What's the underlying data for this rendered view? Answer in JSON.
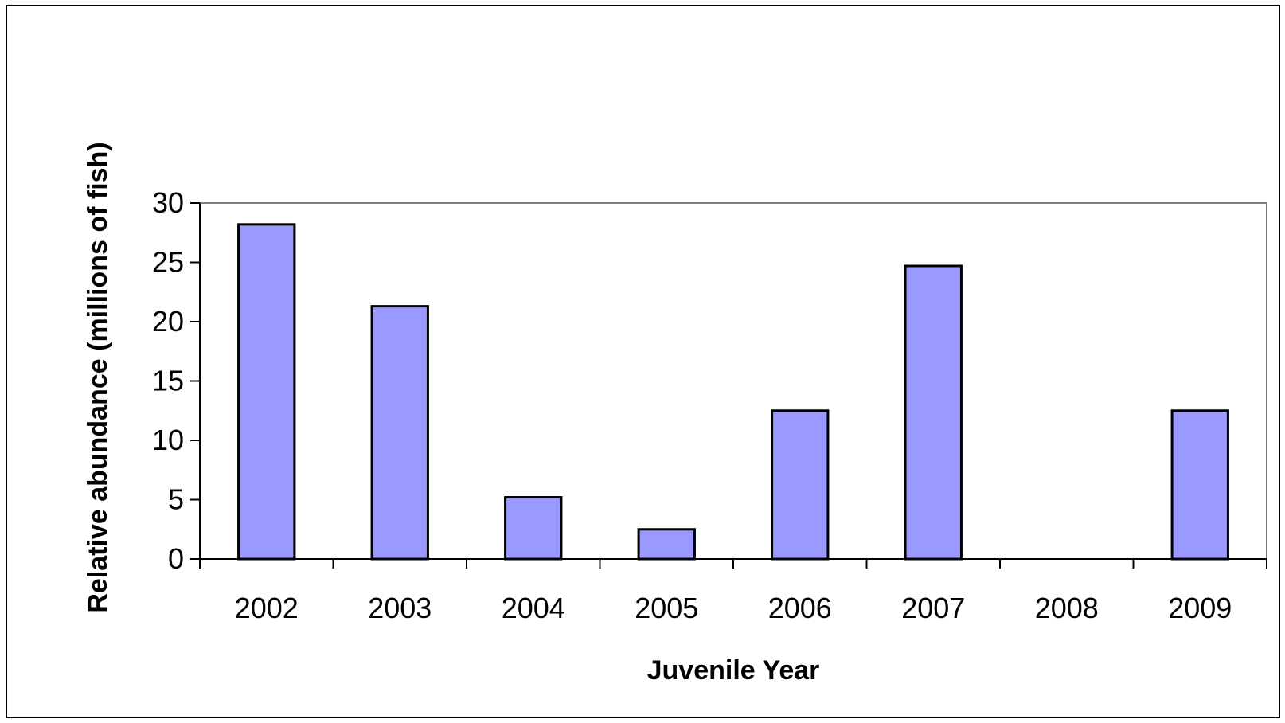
{
  "chart_data": {
    "type": "bar",
    "title": "",
    "xlabel": "Juvenile Year",
    "ylabel": "Relative abundance (millions of fish)",
    "categories": [
      "2002",
      "2003",
      "2004",
      "2005",
      "2006",
      "2007",
      "2008",
      "2009"
    ],
    "values": [
      28.2,
      21.3,
      5.2,
      2.5,
      12.5,
      24.7,
      0,
      12.5
    ],
    "ylim": [
      0,
      30
    ],
    "yticks": [
      0,
      5,
      10,
      15,
      20,
      25,
      30
    ],
    "ytick_labels": [
      "0",
      "5",
      "10",
      "15",
      "20",
      "25",
      "30"
    ],
    "grid": false,
    "legend": "none",
    "colors": {
      "bar_fill": "#9999ff",
      "bar_stroke": "#000000",
      "plot_border": "#808080",
      "axis": "#000000"
    }
  }
}
